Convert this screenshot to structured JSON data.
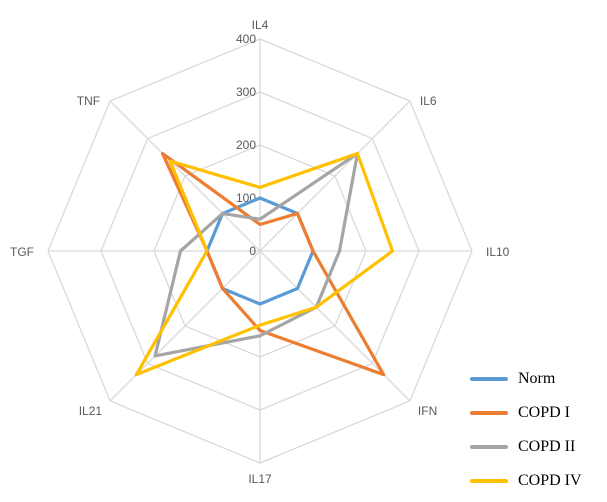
{
  "chart_data": {
    "type": "radar",
    "categories": [
      "IL4",
      "IL6",
      "IL10",
      "IFN",
      "IL17",
      "IL21",
      "TGF",
      "TNF"
    ],
    "rlim": [
      0,
      400
    ],
    "ticks": [
      0,
      100,
      200,
      300,
      400
    ],
    "tick_labels": [
      "0",
      "100",
      "200",
      "300",
      "400"
    ],
    "grid": true,
    "legend_position": "bottom-right",
    "series": [
      {
        "name": "Norm",
        "color": "#5B9BD5",
        "values": [
          100,
          100,
          100,
          100,
          100,
          100,
          100,
          100
        ]
      },
      {
        "name": "COPD I",
        "color": "#ED7D31",
        "values": [
          50,
          100,
          100,
          330,
          150,
          100,
          100,
          260
        ]
      },
      {
        "name": "COPD II",
        "color": "#A5A5A5",
        "values": [
          60,
          260,
          150,
          150,
          160,
          280,
          150,
          100
        ]
      },
      {
        "name": "COPD IV",
        "color": "#FFC000",
        "values": [
          120,
          260,
          250,
          150,
          140,
          330,
          100,
          240
        ]
      }
    ]
  },
  "legend": {
    "items": [
      {
        "label": "Norm",
        "color": "#5B9BD5"
      },
      {
        "label": "COPD I",
        "color": "#ED7D31"
      },
      {
        "label": "COPD II",
        "color": "#A5A5A5"
      },
      {
        "label": "COPD IV",
        "color": "#FFC000"
      }
    ]
  }
}
